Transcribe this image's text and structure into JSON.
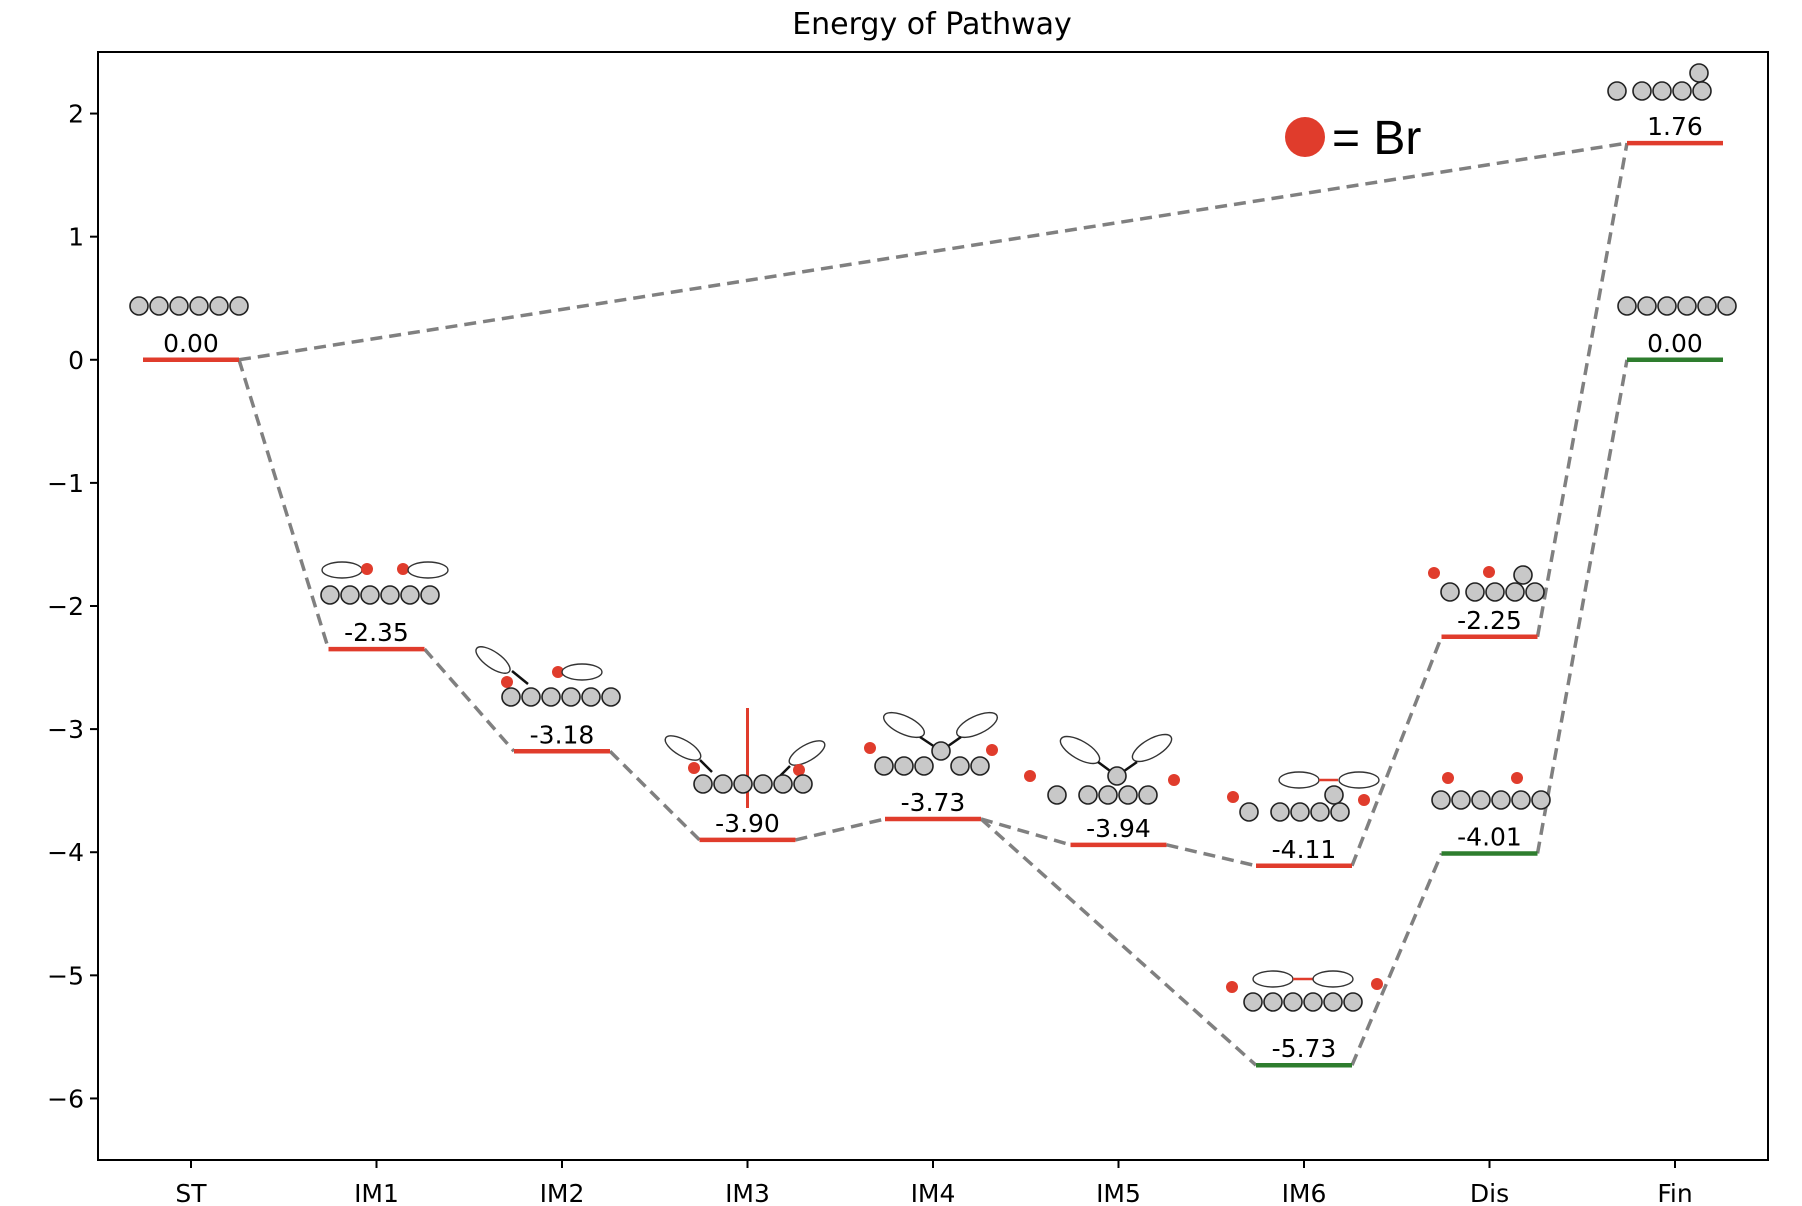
{
  "chart_data": {
    "type": "line",
    "title": "Energy of Pathway",
    "xlabel": "",
    "ylabel": "",
    "categories": [
      "ST",
      "IM1",
      "IM2",
      "IM3",
      "IM4",
      "IM5",
      "IM6",
      "Dis",
      "Fin"
    ],
    "ylim": [
      -6.5,
      2.5
    ],
    "yticks": [
      2,
      1,
      0,
      -1,
      -2,
      -3,
      -4,
      -5,
      -6
    ],
    "ytick_labels": [
      "2",
      "1",
      "0",
      "−1",
      "−2",
      "−3",
      "−4",
      "−5",
      "−6"
    ],
    "grid": false,
    "legend": {
      "label": "= Br",
      "marker_color": "#e03c2c",
      "placement": "top-right"
    },
    "colors": {
      "red": "#e03c2c",
      "green": "#2e7d2e",
      "connector": "#808080"
    },
    "levels": [
      {
        "category": "ST",
        "value": 0.0,
        "label": "0.00",
        "color": "red"
      },
      {
        "category": "IM1",
        "value": -2.35,
        "label": "-2.35",
        "color": "red"
      },
      {
        "category": "IM2",
        "value": -3.18,
        "label": "-3.18",
        "color": "red"
      },
      {
        "category": "IM3",
        "value": -3.9,
        "label": "-3.90",
        "color": "red"
      },
      {
        "category": "IM4",
        "value": -3.73,
        "label": "-3.73",
        "color": "red"
      },
      {
        "category": "IM5",
        "value": -3.94,
        "label": "-3.94",
        "color": "red"
      },
      {
        "category": "IM6",
        "value": -4.11,
        "label": "-4.11",
        "color": "red"
      },
      {
        "category": "IM6",
        "value": -5.73,
        "label": "-5.73",
        "color": "green"
      },
      {
        "category": "Dis",
        "value": -2.25,
        "label": "-2.25",
        "color": "red"
      },
      {
        "category": "Dis",
        "value": -4.01,
        "label": "-4.01",
        "color": "green"
      },
      {
        "category": "Fin",
        "value": 1.76,
        "label": "1.76",
        "color": "red"
      },
      {
        "category": "Fin",
        "value": 0.0,
        "label": "0.00",
        "color": "green"
      }
    ],
    "connections": [
      [
        0,
        1
      ],
      [
        1,
        2
      ],
      [
        2,
        3
      ],
      [
        3,
        4
      ],
      [
        4,
        5
      ],
      [
        5,
        6
      ],
      [
        6,
        8
      ],
      [
        8,
        10
      ],
      [
        0,
        10
      ],
      [
        4,
        7
      ],
      [
        7,
        9
      ],
      [
        9,
        11
      ]
    ]
  }
}
